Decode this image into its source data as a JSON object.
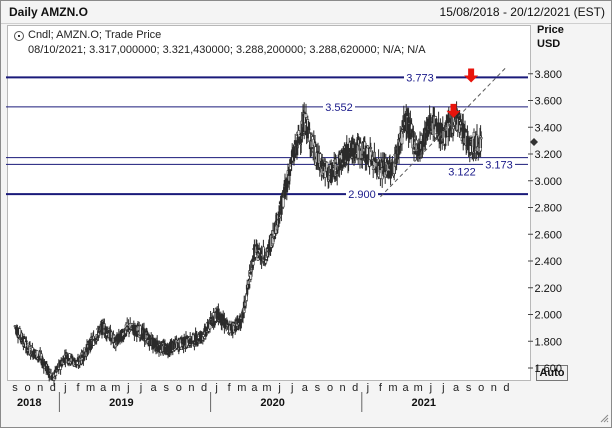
{
  "window": {
    "title": "Daily AMZN.O",
    "date_range": "15/08/2018 - 20/12/2021 (EST)"
  },
  "legend": {
    "series_label": "Cndl; AMZN.O; Trade Price",
    "ohlc_line": "08/10/2021; 3.317,000000; 3.321,430000; 3.288,200000; 3.288,620000; N/A; N/A"
  },
  "axis": {
    "price_title": "Price",
    "currency": "USD",
    "auto_button": "Auto"
  },
  "colors": {
    "candles": "#2b2b2b",
    "level_lines": "#1a1a7a",
    "level_labels": "#1a1a8a",
    "arrows": "#e8140c",
    "trendline": "#5a5a5a"
  },
  "chart_data": {
    "type": "candlestick",
    "title": "Daily AMZN.O",
    "ylabel": "Price USD",
    "ylim": [
      1550,
      3900
    ],
    "y_ticks": [
      "1.600",
      "1.800",
      "2.000",
      "2.200",
      "2.400",
      "2.600",
      "2.800",
      "3.000",
      "3.200",
      "3.400",
      "3.600",
      "3.800"
    ],
    "y_tick_values": [
      1600,
      1800,
      2000,
      2200,
      2400,
      2600,
      2800,
      3000,
      3200,
      3400,
      3600,
      3800
    ],
    "x_months": [
      "s",
      "o",
      "n",
      "d",
      "j",
      "f",
      "m",
      "a",
      "m",
      "j",
      "j",
      "a",
      "s",
      "o",
      "n",
      "d",
      "j",
      "f",
      "m",
      "a",
      "m",
      "j",
      "j",
      "a",
      "s",
      "o",
      "n",
      "d",
      "j",
      "f",
      "m",
      "a",
      "m",
      "j",
      "j",
      "a",
      "s",
      "o",
      "n",
      "d"
    ],
    "years": [
      "2018",
      "2019",
      "2020",
      "2021"
    ],
    "year_month_index": [
      0,
      4,
      16,
      28
    ],
    "levels": [
      {
        "label": "3.773",
        "value": 3773,
        "weight": "heavy"
      },
      {
        "label": "3.552",
        "value": 3552,
        "weight": "light"
      },
      {
        "label": "3.173",
        "value": 3173,
        "weight": "light"
      },
      {
        "label": "3.122",
        "value": 3122,
        "weight": "light"
      },
      {
        "label": "2.900",
        "value": 2900,
        "weight": "heavy"
      }
    ],
    "last_price_marker": 3290,
    "trendline": {
      "start": [
        "2021-02",
        2880
      ],
      "end": [
        "2021-12",
        3850
      ]
    },
    "arrows": [
      {
        "month_index": 34.8,
        "value": 3470
      },
      {
        "month_index": 36.2,
        "value": 3735
      }
    ],
    "monthly_closes": [
      {
        "m": "2018-09",
        "v": 1910
      },
      {
        "m": "2018-10",
        "v": 1750
      },
      {
        "m": "2018-11",
        "v": 1680
      },
      {
        "m": "2018-12",
        "v": 1520
      },
      {
        "m": "2019-01",
        "v": 1690
      },
      {
        "m": "2019-02",
        "v": 1630
      },
      {
        "m": "2019-03",
        "v": 1780
      },
      {
        "m": "2019-04",
        "v": 1910
      },
      {
        "m": "2019-05",
        "v": 1790
      },
      {
        "m": "2019-06",
        "v": 1900
      },
      {
        "m": "2019-07",
        "v": 1870
      },
      {
        "m": "2019-08",
        "v": 1780
      },
      {
        "m": "2019-09",
        "v": 1740
      },
      {
        "m": "2019-10",
        "v": 1780
      },
      {
        "m": "2019-11",
        "v": 1800
      },
      {
        "m": "2019-12",
        "v": 1850
      },
      {
        "m": "2020-01",
        "v": 2010
      },
      {
        "m": "2020-02",
        "v": 1890
      },
      {
        "m": "2020-03",
        "v": 1950
      },
      {
        "m": "2020-04",
        "v": 2470
      },
      {
        "m": "2020-05",
        "v": 2440
      },
      {
        "m": "2020-06",
        "v": 2760
      },
      {
        "m": "2020-07",
        "v": 3160
      },
      {
        "m": "2020-08",
        "v": 3450
      },
      {
        "m": "2020-09",
        "v": 3150
      },
      {
        "m": "2020-10",
        "v": 3040
      },
      {
        "m": "2020-11",
        "v": 3170
      },
      {
        "m": "2020-12",
        "v": 3250
      },
      {
        "m": "2021-01",
        "v": 3200
      },
      {
        "m": "2021-02",
        "v": 3090
      },
      {
        "m": "2021-03",
        "v": 3090
      },
      {
        "m": "2021-04",
        "v": 3460
      },
      {
        "m": "2021-05",
        "v": 3220
      },
      {
        "m": "2021-06",
        "v": 3440
      },
      {
        "m": "2021-07",
        "v": 3330
      },
      {
        "m": "2021-08",
        "v": 3470
      },
      {
        "m": "2021-09",
        "v": 3280
      },
      {
        "m": "2021-10",
        "v": 3290
      }
    ]
  }
}
